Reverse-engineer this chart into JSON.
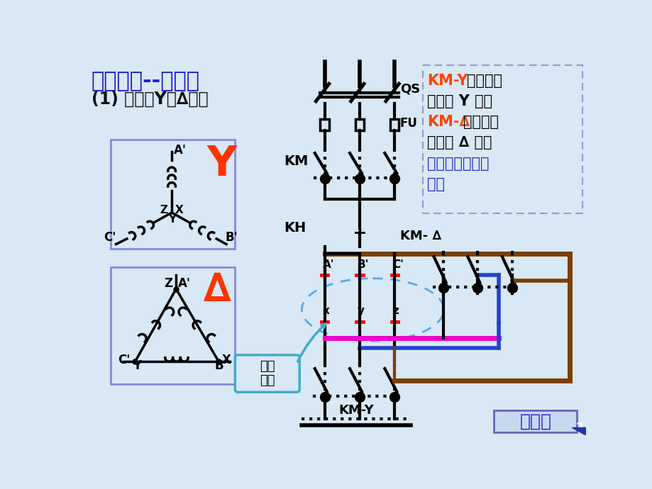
{
  "bg_color": "#d8e8f4",
  "title_text": "定时控制--举例：",
  "subtitle_text": "(1) 电机的Y－∆起动",
  "title_color": "#1a1acc",
  "title_fontsize": 22,
  "subtitle_fontsize": 18,
  "label_KM": "KM",
  "label_KH": "KH",
  "label_KM_delta": "KM- ∆",
  "label_KM_Y": "KM-Y",
  "label_QS": "QS",
  "label_FU": "FU",
  "label_main_circuit": "主电路",
  "label_motor": "电机\n绕组",
  "ann_kmY_color": "#ff4400",
  "ann_black": "#000000",
  "ann_blue": "#2222cc",
  "brown_color": "#7B3F00",
  "blue_color": "#2244cc",
  "magenta_color": "#ee00cc"
}
